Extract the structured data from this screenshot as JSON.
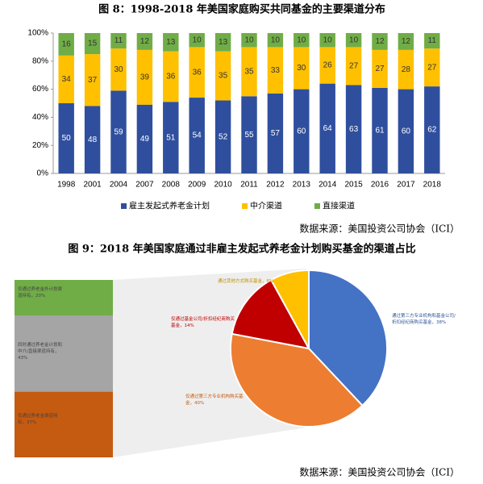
{
  "chart_data": [
    {
      "type": "stacked-bar",
      "title": "图 8：1998-2018 年美国家庭购买共同基金的主要渠道分布",
      "categories": [
        "1998",
        "2001",
        "2004",
        "2007",
        "2008",
        "2009",
        "2010",
        "2011",
        "2012",
        "2013",
        "2014",
        "2015",
        "2016",
        "2017",
        "2018"
      ],
      "series": [
        {
          "name": "雇主发起式养老金计划",
          "color": "#2f4f9e",
          "values": [
            50,
            48,
            59,
            49,
            51,
            54,
            52,
            55,
            57,
            60,
            64,
            63,
            61,
            60,
            62
          ]
        },
        {
          "name": "中介渠道",
          "color": "#ffc000",
          "values": [
            34,
            37,
            30,
            39,
            36,
            36,
            35,
            35,
            33,
            30,
            26,
            27,
            27,
            28,
            27
          ]
        },
        {
          "name": "直接渠道",
          "color": "#70ad47",
          "values": [
            16,
            15,
            11,
            12,
            13,
            10,
            13,
            10,
            10,
            10,
            10,
            10,
            12,
            12,
            11
          ]
        }
      ],
      "ylim": [
        0,
        100
      ],
      "yticks": [
        {
          "value": 0,
          "label": "0%"
        },
        {
          "value": 20,
          "label": "20%"
        },
        {
          "value": 40,
          "label": "40%"
        },
        {
          "value": 60,
          "label": "60%"
        },
        {
          "value": 80,
          "label": "80%"
        },
        {
          "value": 100,
          "label": "100%"
        }
      ],
      "legend": "bottom",
      "source": "数据来源：美国投资公司协会（ICI）"
    },
    {
      "type": "bar-of-pie",
      "title": "图 9：2018 年美国家庭通过非雇主发起式养老金计划购买基金的渠道占比",
      "bar": {
        "labels": [
          "仅通过养老金外计划渠道持有，20%",
          "同时通过养老金计划和中介/直接渠道持有，43%",
          "仅通过养老金渠道持有，37%"
        ],
        "values": [
          20,
          43,
          37
        ],
        "colors": [
          "#70ad47",
          "#a5a5a5",
          "#c55a11"
        ]
      },
      "pie": {
        "labels": [
          "通过第三方专业机构和基金公司/折扣经纪商购买基金，38%",
          "仅通过第三方专业机构购买基金，40%",
          "仅通过基金公司/折扣经纪商购买基金，14%",
          "通过其他方式购买基金，8%"
        ],
        "values": [
          38,
          40,
          14,
          8
        ],
        "colors": [
          "#4472c4",
          "#ed7d31",
          "#c00000",
          "#ffc000"
        ]
      },
      "source": "数据来源：美国投资公司协会（ICI）"
    }
  ]
}
